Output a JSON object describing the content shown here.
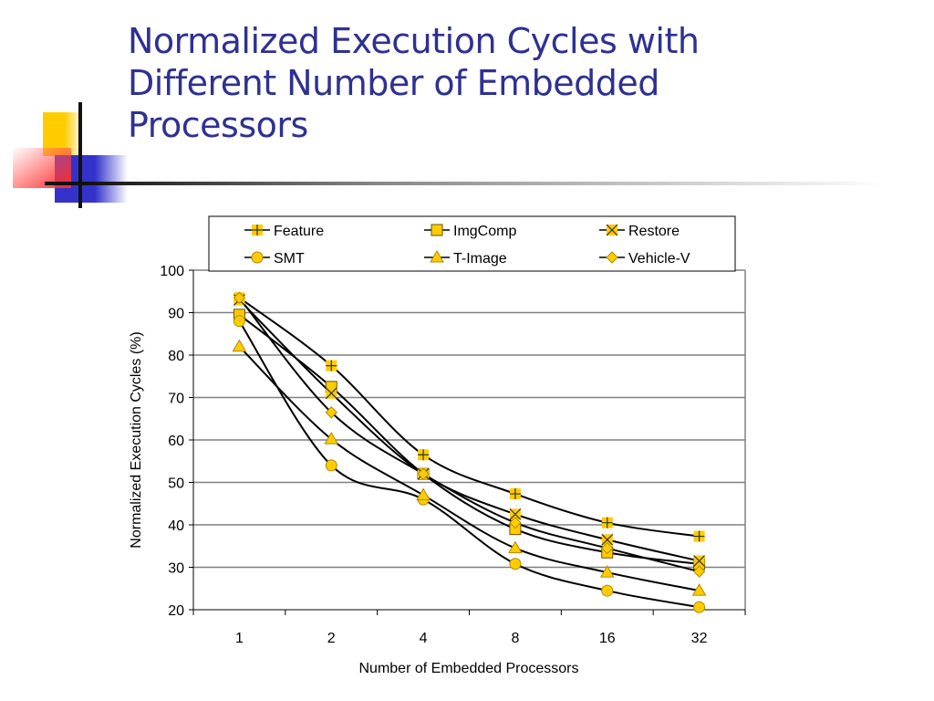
{
  "slide": {
    "title": "Normalized Execution Cycles with Different Number of Embedded Processors",
    "title_lines": [
      "Normalized Execution Cycles with",
      "Different Number of Embedded",
      "Processors"
    ],
    "title_color": "#2e3192"
  },
  "chart_data": {
    "type": "line",
    "title": "",
    "xlabel": "Number of Embedded Processors",
    "ylabel": "Normalized Execution Cycles (%)",
    "categories": [
      "1",
      "2",
      "4",
      "8",
      "16",
      "32"
    ],
    "ylim": [
      20,
      100
    ],
    "yticks": [
      20,
      30,
      40,
      50,
      60,
      70,
      80,
      90,
      100
    ],
    "grid": true,
    "legend_position": "top",
    "marker_color": "#ffcc00",
    "line_color": "#000000",
    "series": [
      {
        "name": "Feature",
        "marker": "plus-square",
        "values": [
          93.5,
          77.5,
          56.5,
          47.3,
          40.5,
          37.3
        ]
      },
      {
        "name": "ImgComp",
        "marker": "square",
        "values": [
          89.5,
          72.5,
          52.0,
          39.0,
          33.5,
          30.8
        ]
      },
      {
        "name": "Restore",
        "marker": "x-square",
        "values": [
          93.0,
          71.0,
          52.0,
          42.5,
          36.5,
          31.5
        ]
      },
      {
        "name": "SMT",
        "marker": "circle",
        "values": [
          88.0,
          54.0,
          46.0,
          30.8,
          24.5,
          20.6
        ]
      },
      {
        "name": "T-Image",
        "marker": "triangle",
        "values": [
          82.0,
          60.2,
          47.0,
          34.5,
          28.8,
          24.5
        ]
      },
      {
        "name": "Vehicle-V",
        "marker": "diamond",
        "values": [
          93.5,
          66.5,
          52.0,
          40.5,
          34.5,
          29.0
        ]
      }
    ]
  }
}
